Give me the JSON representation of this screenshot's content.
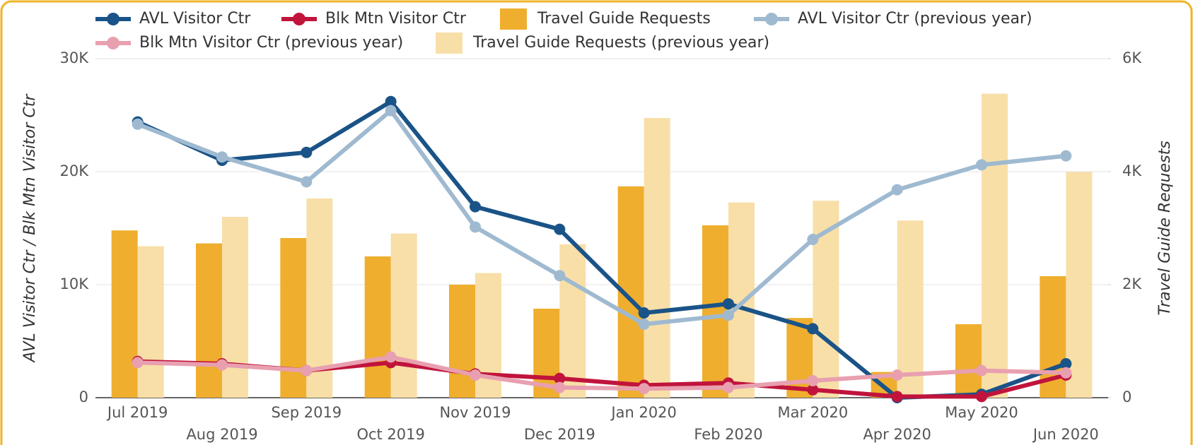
{
  "chart_data": {
    "type": "combo",
    "categories": [
      "Jul 2019",
      "Aug 2019",
      "Sep 2019",
      "Oct 2019",
      "Nov 2019",
      "Dec 2019",
      "Jan 2020",
      "Feb 2020",
      "Mar 2020",
      "Apr 2020",
      "May 2020",
      "Jun 2020"
    ],
    "series": [
      {
        "name": "AVL Visitor Ctr",
        "type": "line",
        "axis": "y",
        "color": "#1a5387",
        "values": [
          24400,
          21000,
          21700,
          26200,
          16900,
          14900,
          7500,
          8300,
          6100,
          0,
          300,
          3000
        ]
      },
      {
        "name": "Blk Mtn Visitor Ctr",
        "type": "line",
        "axis": "y",
        "color": "#c0143c",
        "values": [
          3200,
          3000,
          2400,
          3100,
          2100,
          1700,
          1100,
          1300,
          700,
          100,
          100,
          2000
        ]
      },
      {
        "name": "Travel Guide Requests",
        "type": "bar",
        "axis": "y2",
        "color": "#efae2e",
        "values": [
          2960,
          2730,
          2825,
          2500,
          2000,
          1575,
          3740,
          3050,
          1410,
          455,
          1300,
          2150
        ]
      },
      {
        "name": "AVL Visitor Ctr (previous year)",
        "type": "line",
        "axis": "y",
        "color": "#9fbad0",
        "values": [
          24200,
          21300,
          19100,
          25400,
          15100,
          10800,
          6500,
          7300,
          14000,
          18400,
          20600,
          21400
        ]
      },
      {
        "name": "Blk Mtn Visitor Ctr (previous year)",
        "type": "line",
        "axis": "y",
        "color": "#e8a0b0",
        "values": [
          3100,
          2900,
          2400,
          3600,
          2000,
          900,
          800,
          900,
          1500,
          2000,
          2400,
          2200
        ]
      },
      {
        "name": "Travel Guide Requests (previous year)",
        "type": "bar",
        "axis": "y2",
        "color": "#f8dfa8",
        "values": [
          2680,
          3200,
          3525,
          2905,
          2205,
          2715,
          4950,
          3455,
          3485,
          3135,
          5380,
          3995
        ]
      }
    ],
    "ylabel": "AVL Visitor Ctr / Blk Mtn Visitor Ctr",
    "y2label": "Travel Guide Requests",
    "ylim": [
      0,
      30000
    ],
    "yticks": [
      0,
      {
        "value": 10000,
        "label": "10K"
      },
      {
        "value": 20000,
        "label": "20K"
      },
      {
        "value": 30000,
        "label": "30K"
      }
    ],
    "y2lim": [
      0,
      6000
    ],
    "y2ticks": [
      0,
      {
        "value": 2000,
        "label": "2K"
      },
      {
        "value": 4000,
        "label": "4K"
      },
      {
        "value": 6000,
        "label": "6K"
      }
    ],
    "grid": true
  }
}
